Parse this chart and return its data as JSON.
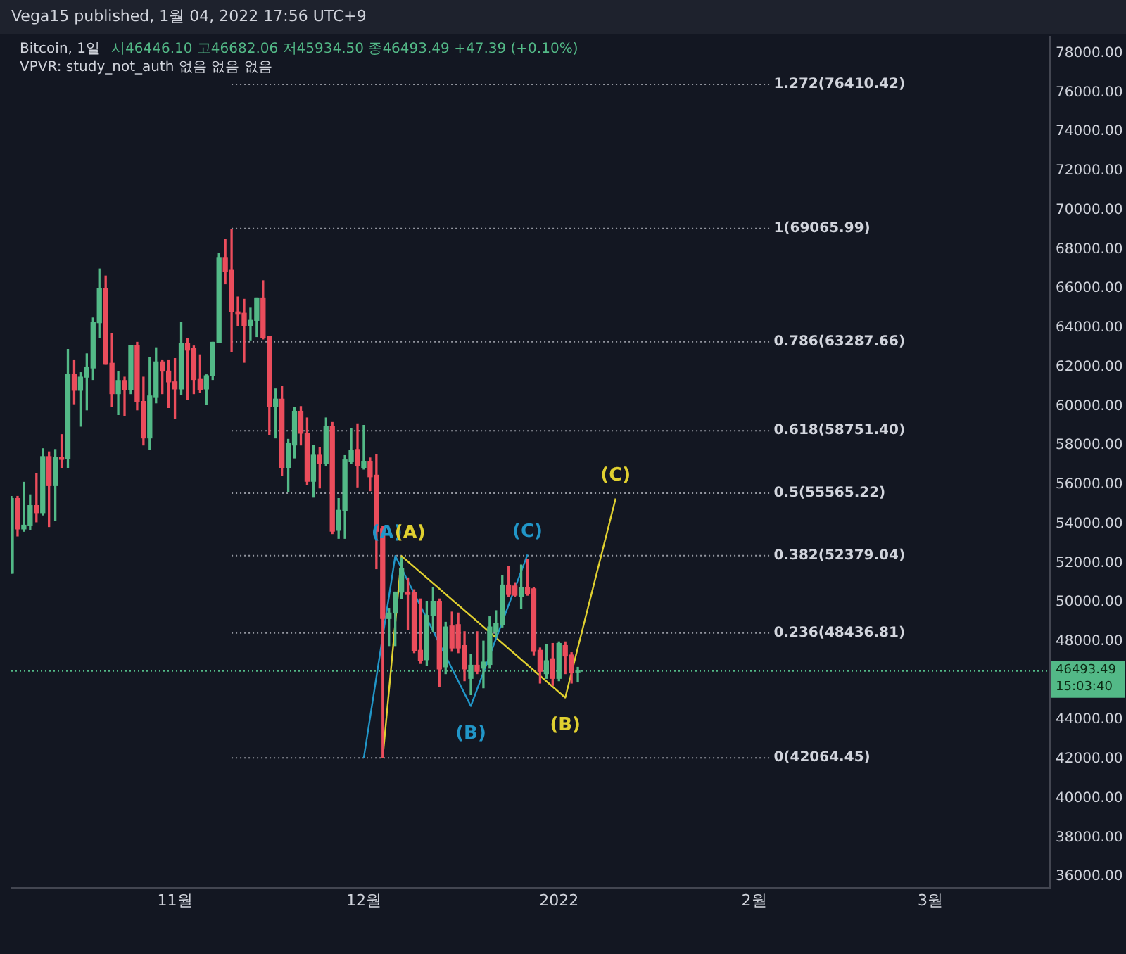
{
  "chart_data": {
    "type": "candlestick",
    "title": "Bitcoin, 1일",
    "subtitle": "VPVR: study_not_auth 없음 없음 없음",
    "annotations": [
      "Vega15 published, 1월 04, 2022 17:56 UTC+9",
      "시46446.10 고46682.06 저45934.50 종46493.49 +47.39 (+0.10%)",
      "(A)",
      "(B)",
      "(C)",
      "(A)",
      "(B)",
      "(C)"
    ],
    "colors": [
      "#53b987",
      "#eb4d5c",
      "#53b987",
      "#53b987",
      "#eb4d5c",
      "#53b987",
      "#eb4d5c",
      "#53b987",
      "#eb4d5c",
      "#53b987",
      "#eb4d5c",
      "#53b987",
      "#53b987",
      "#53b987",
      "#53b987",
      "#eb4d5c",
      "#eb4d5c",
      "#53b987",
      "#eb4d5c",
      "#53b987",
      "#eb4d5c",
      "#eb4d5c",
      "#53b987",
      "#53b987",
      "#eb4d5c",
      "#eb4d5c",
      "#eb4d5c",
      "#53b987",
      "#eb4d5c",
      "#eb4d5c",
      "#eb4d5c",
      "#53b987",
      "#53b987",
      "#53b987",
      "#eb4d5c",
      "#eb4d5c",
      "#eb4d5c",
      "#eb4d5c",
      "#53b987",
      "#53b987",
      "#eb4d5c",
      "#eb4d5c",
      "#53b987",
      "#eb4d5c",
      "#53b987",
      "#53b987",
      "#eb4d5c",
      "#eb4d5c",
      "#53b987",
      "#eb4d5c",
      "#53b987",
      "#eb4d5c",
      "#53b987",
      "#53b987",
      "#53b987",
      "#eb4d5c",
      "#53b987",
      "#eb4d5c",
      "#eb4d5c",
      "#eb4d5c",
      "#53b987",
      "#53b987",
      "#53b987",
      "#eb4d5c",
      "#eb4d5c",
      "#eb4d5c",
      "#53b987",
      "#53b987",
      "#eb4d5c",
      "#53b987",
      "#eb4d5c",
      "#eb4d5c",
      "#eb4d5c",
      "#53b987",
      "#eb4d5c",
      "#53b987",
      "#53b987",
      "#53b987",
      "#53b987",
      "#eb4d5c",
      "#eb4d5c",
      "#53b987",
      "#eb4d5c",
      "#eb4d5c",
      "#eb4d5c",
      "#53b987",
      "#eb4d5c",
      "#53b987",
      "#eb4d5c",
      "#eb4d5c",
      "#53b987"
    ],
    "x": [
      "2021-10-06",
      "2021-10-07",
      "2021-10-08",
      "2021-10-09",
      "2021-10-10",
      "2021-10-11",
      "2021-10-12",
      "2021-10-13",
      "2021-10-14",
      "2021-10-15",
      "2021-10-16",
      "2021-10-17",
      "2021-10-18",
      "2021-10-19",
      "2021-10-20",
      "2021-10-21",
      "2021-10-22",
      "2021-10-23",
      "2021-10-24",
      "2021-10-25",
      "2021-10-26",
      "2021-10-27",
      "2021-10-28",
      "2021-10-29",
      "2021-10-30",
      "2021-10-31",
      "2021-11-01",
      "2021-11-02",
      "2021-11-03",
      "2021-11-04",
      "2021-11-05",
      "2021-11-06",
      "2021-11-07",
      "2021-11-08",
      "2021-11-09",
      "2021-11-10",
      "2021-11-11",
      "2021-11-12",
      "2021-11-13",
      "2021-11-14",
      "2021-11-15",
      "2021-11-16",
      "2021-11-17",
      "2021-11-18",
      "2021-11-19",
      "2021-11-20",
      "2021-11-21",
      "2021-11-22",
      "2021-11-23",
      "2021-11-24",
      "2021-11-25",
      "2021-11-26",
      "2021-11-27",
      "2021-11-28",
      "2021-11-29",
      "2021-11-30",
      "2021-12-01",
      "2021-12-02",
      "2021-12-03",
      "2021-12-04",
      "2021-12-05",
      "2021-12-06",
      "2021-12-07",
      "2021-12-08",
      "2021-12-09",
      "2021-12-10",
      "2021-12-11",
      "2021-12-12",
      "2021-12-13",
      "2021-12-14",
      "2021-12-15",
      "2021-12-16",
      "2021-12-17",
      "2021-12-18",
      "2021-12-19",
      "2021-12-20",
      "2021-12-21",
      "2021-12-22",
      "2021-12-23",
      "2021-12-24",
      "2021-12-25",
      "2021-12-26",
      "2021-12-27",
      "2021-12-28",
      "2021-12-29",
      "2021-12-30",
      "2021-12-31",
      "2022-01-01",
      "2022-01-02",
      "2022-01-03",
      "2022-01-04"
    ],
    "ohlc": [
      [
        51480,
        55400,
        51480,
        55290
      ],
      [
        55290,
        55400,
        53380,
        53740
      ],
      [
        53740,
        56120,
        53620,
        53930
      ],
      [
        53930,
        55480,
        53690,
        54930
      ],
      [
        54930,
        56550,
        54100,
        54570
      ],
      [
        54570,
        57830,
        54450,
        57430
      ],
      [
        57430,
        57670,
        53860,
        55950
      ],
      [
        55950,
        57790,
        54170,
        57380
      ],
      [
        57380,
        58550,
        56880,
        57290
      ],
      [
        57310,
        62900,
        56880,
        61640
      ],
      [
        61640,
        62360,
        60120,
        60810
      ],
      [
        60810,
        61710,
        58980,
        61480
      ],
      [
        61480,
        62670,
        59810,
        62000
      ],
      [
        61950,
        64500,
        61360,
        64260
      ],
      [
        64260,
        67000,
        63500,
        66000
      ],
      [
        66000,
        66640,
        62140,
        62140
      ],
      [
        62190,
        63690,
        60000,
        60640
      ],
      [
        60640,
        61760,
        59570,
        61310
      ],
      [
        61310,
        61480,
        59520,
        60830
      ],
      [
        60830,
        63100,
        60640,
        63100
      ],
      [
        63100,
        63260,
        59810,
        60240
      ],
      [
        60240,
        61480,
        58020,
        58380
      ],
      [
        58380,
        62500,
        57790,
        60520
      ],
      [
        60480,
        62980,
        60170,
        62260
      ],
      [
        62260,
        62360,
        60640,
        61790
      ],
      [
        61790,
        62360,
        59930,
        61240
      ],
      [
        61240,
        62430,
        59380,
        60880
      ],
      [
        60880,
        64260,
        60600,
        63210
      ],
      [
        63210,
        63450,
        60360,
        62860
      ],
      [
        62950,
        63070,
        60640,
        61360
      ],
      [
        61400,
        62620,
        60710,
        60830
      ],
      [
        60880,
        61600,
        60100,
        61550
      ],
      [
        61550,
        63260,
        61360,
        63260
      ],
      [
        63260,
        67790,
        63260,
        67550
      ],
      [
        67550,
        68500,
        66240,
        66880
      ],
      [
        66930,
        69020,
        62790,
        64810
      ],
      [
        64810,
        65570,
        64100,
        64690
      ],
      [
        64740,
        65450,
        62240,
        64100
      ],
      [
        64100,
        65000,
        63380,
        64380
      ],
      [
        64380,
        65520,
        63550,
        65520
      ],
      [
        65520,
        66400,
        63430,
        63500
      ],
      [
        63570,
        63570,
        58550,
        60000
      ],
      [
        60000,
        60880,
        58380,
        60360
      ],
      [
        60360,
        61000,
        56480,
        56880
      ],
      [
        56880,
        58310,
        55640,
        58100
      ],
      [
        58020,
        59930,
        57360,
        59740
      ],
      [
        59740,
        59980,
        58020,
        58620
      ],
      [
        58620,
        59400,
        56000,
        56170
      ],
      [
        56170,
        57980,
        55360,
        57500
      ],
      [
        57500,
        57900,
        55830,
        57070
      ],
      [
        57070,
        59400,
        56950,
        58980
      ],
      [
        58980,
        59170,
        53500,
        53620
      ],
      [
        53670,
        55290,
        53260,
        54690
      ],
      [
        54690,
        57480,
        53260,
        57260
      ],
      [
        57190,
        58860,
        57070,
        57740
      ],
      [
        57790,
        59100,
        55880,
        56950
      ],
      [
        56880,
        59020,
        56790,
        57190
      ],
      [
        57190,
        57360,
        55690,
        56400
      ],
      [
        56480,
        57550,
        51710,
        53620
      ],
      [
        53740,
        53860,
        42070,
        49170
      ],
      [
        49170,
        49690,
        47790,
        49450
      ],
      [
        49450,
        50520,
        47790,
        50520
      ],
      [
        50520,
        52260,
        50170,
        51710
      ],
      [
        50520,
        51240,
        48620,
        50400
      ],
      [
        50520,
        50640,
        47430,
        47550
      ],
      [
        47550,
        50170,
        46880,
        47020
      ],
      [
        47070,
        50050,
        46790,
        49330
      ],
      [
        49330,
        50760,
        48500,
        50050
      ],
      [
        50050,
        50170,
        45690,
        46600
      ],
      [
        46710,
        48980,
        46360,
        48740
      ],
      [
        48790,
        49500,
        47500,
        47670
      ],
      [
        48860,
        49450,
        47430,
        47670
      ],
      [
        47790,
        48500,
        46000,
        46600
      ],
      [
        46120,
        47360,
        45290,
        46790
      ],
      [
        46790,
        48500,
        46360,
        46480
      ],
      [
        46640,
        48020,
        45640,
        46950
      ],
      [
        46830,
        49260,
        46640,
        48740
      ],
      [
        48500,
        49570,
        48260,
        48930
      ],
      [
        48860,
        51360,
        48740,
        50880
      ],
      [
        50880,
        51830,
        50290,
        50400
      ],
      [
        50830,
        51000,
        50300,
        50360
      ],
      [
        50290,
        51900,
        49690,
        50760
      ],
      [
        50760,
        52190,
        50360,
        50450
      ],
      [
        50690,
        50760,
        47310,
        47500
      ],
      [
        47550,
        47670,
        45880,
        46480
      ],
      [
        46360,
        47830,
        46120,
        47020
      ],
      [
        47120,
        47900,
        45760,
        46120
      ],
      [
        46120,
        47980,
        46000,
        47900
      ],
      [
        47790,
        47980,
        46360,
        47260
      ],
      [
        47310,
        47430,
        45880,
        46400
      ],
      [
        46446.1,
        46682.06,
        45934.5,
        46493.49
      ]
    ],
    "series": [
      {
        "type": "line",
        "color": "#2196c8",
        "x": [
          "2021-12-01",
          "2021-12-06",
          "2021-12-18",
          "2021-12-27"
        ],
        "values": [
          42070,
          52360,
          44710,
          52430
        ]
      },
      {
        "type": "line",
        "color": "#e0d030",
        "x": [
          "2021-12-04",
          "2021-12-07",
          "2022-01-02",
          "2022-01-10"
        ],
        "values": [
          42070,
          52360,
          45140,
          55290
        ]
      }
    ],
    "ref_lines": [
      {
        "axis": "y",
        "value": 76410.42,
        "label": "1.272(76410.42)",
        "line_style": "dotted"
      },
      {
        "axis": "y",
        "value": 69065.99,
        "label": "1(69065.99)",
        "line_style": "dotted"
      },
      {
        "axis": "y",
        "value": 63287.66,
        "label": "0.786(63287.66)",
        "line_style": "dotted"
      },
      {
        "axis": "y",
        "value": 58751.4,
        "label": "0.618(58751.40)",
        "line_style": "dotted"
      },
      {
        "axis": "y",
        "value": 55565.22,
        "label": "0.5(55565.22)",
        "line_style": "dotted"
      },
      {
        "axis": "y",
        "value": 52379.04,
        "label": "0.382(52379.04)",
        "line_style": "dotted"
      },
      {
        "axis": "y",
        "value": 48436.81,
        "label": "0.236(48436.81)",
        "line_style": "dotted"
      },
      {
        "axis": "y",
        "value": 42064.45,
        "label": "0(42064.45)",
        "line_style": "dotted"
      },
      {
        "axis": "y",
        "value": 46493.49,
        "label": "46493.49\n15:03:40",
        "color": "#53b987",
        "line_style": "dotted"
      }
    ],
    "xlim": [
      "2021-10-06",
      "2022-03-20"
    ],
    "xticks": [
      {
        "value": "2021-11-01",
        "label": "11월"
      },
      {
        "value": "2021-12-01",
        "label": "12월"
      },
      {
        "value": "2022-01-01",
        "label": "2022"
      },
      {
        "value": "2022-02-01",
        "label": "2월"
      },
      {
        "value": "2022-03-01",
        "label": "3월"
      }
    ],
    "ylim": [
      35450,
      78850
    ],
    "yticks": [
      {
        "value": 36000,
        "label": "36000.00"
      },
      {
        "value": 38000,
        "label": "38000.00"
      },
      {
        "value": 40000,
        "label": "40000.00"
      },
      {
        "value": 42000,
        "label": "42000.00"
      },
      {
        "value": 44000,
        "label": "44000.00"
      },
      {
        "value": 48000,
        "label": "48000.00"
      },
      {
        "value": 50000,
        "label": "50000.00"
      },
      {
        "value": 52000,
        "label": "52000.00"
      },
      {
        "value": 54000,
        "label": "54000.00"
      },
      {
        "value": 56000,
        "label": "56000.00"
      },
      {
        "value": 58000,
        "label": "58000.00"
      },
      {
        "value": 60000,
        "label": "60000.00"
      },
      {
        "value": 62000,
        "label": "62000.00"
      },
      {
        "value": 64000,
        "label": "64000.00"
      },
      {
        "value": 66000,
        "label": "66000.00"
      },
      {
        "value": 68000,
        "label": "68000.00"
      },
      {
        "value": 70000,
        "label": "70000.00"
      },
      {
        "value": 72000,
        "label": "72000.00"
      },
      {
        "value": 74000,
        "label": "74000.00"
      },
      {
        "value": 76000,
        "label": "76000.00"
      },
      {
        "value": 78000,
        "label": "78000.00"
      }
    ]
  }
}
